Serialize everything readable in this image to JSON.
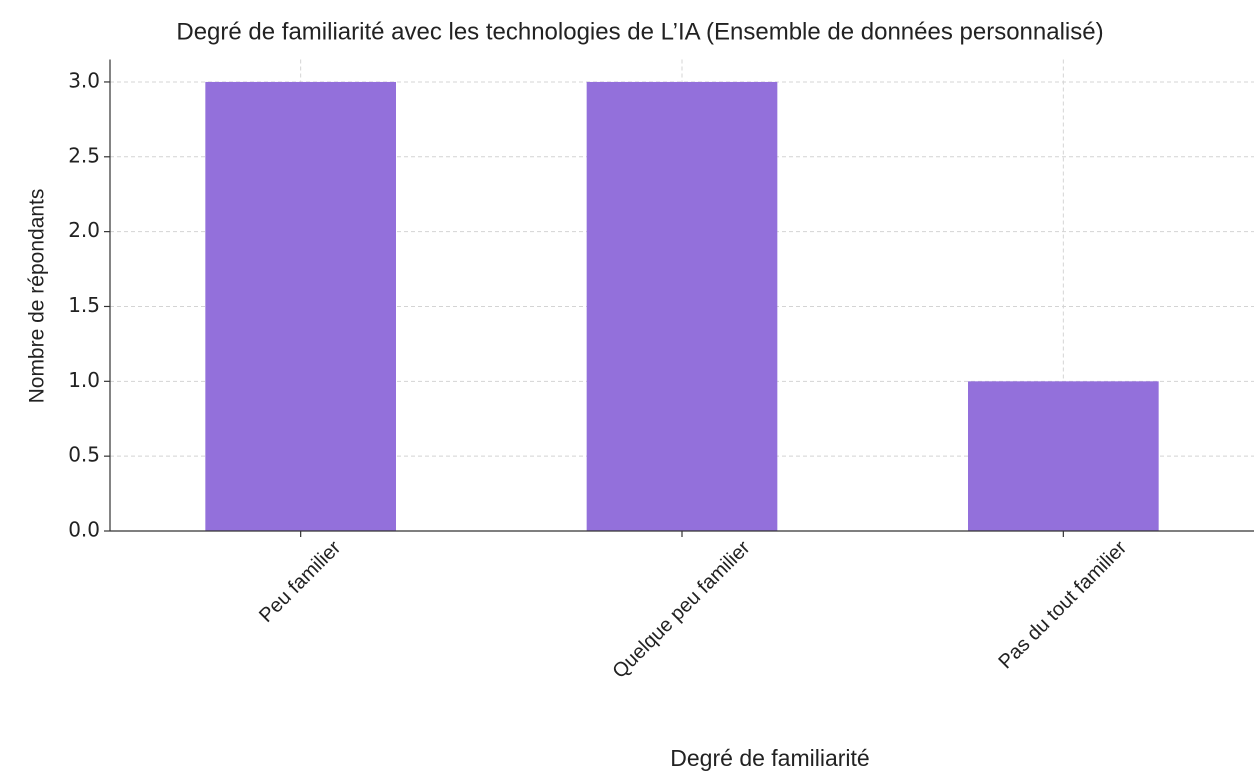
{
  "chart_data": {
    "type": "bar",
    "title": "Degré de familiarité avec les technologies de L’IA (Ensemble de données personnalisé)",
    "xlabel": "Degré de familiarité",
    "ylabel": "Nombre de répondants",
    "categories": [
      "Peu familier",
      "Quelque peu familier",
      "Pas du tout familier"
    ],
    "values": [
      3,
      3,
      1
    ],
    "color": "#9370db",
    "ylim": [
      0,
      3.15
    ],
    "yticks": [
      {
        "value": 0,
        "label": "0.0"
      },
      {
        "value": 0.5,
        "label": "0.5"
      },
      {
        "value": 1,
        "label": "1.0"
      },
      {
        "value": 1.5,
        "label": "1.5"
      },
      {
        "value": 2,
        "label": "2.0"
      },
      {
        "value": 2.5,
        "label": "2.5"
      },
      {
        "value": 3,
        "label": "3.0"
      }
    ],
    "grid": true
  }
}
